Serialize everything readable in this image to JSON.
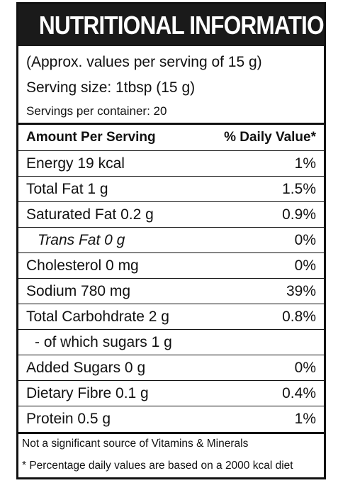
{
  "title": "NUTRITIONAL INFORMATION",
  "intro": {
    "approx": "(Approx. values per serving of 15 g)",
    "serving_size": "Serving size: 1tbsp (15 g)",
    "servings_per_container": "Servings per container: 20"
  },
  "header": {
    "amount": "Amount Per Serving",
    "daily_value": "% Daily Value*"
  },
  "rows": [
    {
      "label": "Energy 19 kcal",
      "value": "1%"
    },
    {
      "label": "Total Fat 1 g",
      "value": "1.5%"
    },
    {
      "label": "Saturated Fat 0.2 g",
      "value": "0.9%"
    },
    {
      "label": "Trans Fat 0 g",
      "value": "0%"
    },
    {
      "label": "Cholesterol 0 mg",
      "value": "0%"
    },
    {
      "label": "Sodium 780 mg",
      "value": "39%"
    },
    {
      "label": "Total Carbohdrate 2 g",
      "value": "0.8%"
    },
    {
      "label": "- of which sugars 1 g",
      "value": ""
    },
    {
      "label": "Added Sugars 0 g",
      "value": "0%"
    },
    {
      "label": "Dietary Fibre 0.1 g",
      "value": "0.4%"
    },
    {
      "label": "Protein 0.5 g",
      "value": "1%"
    }
  ],
  "footer": {
    "note1": "Not a significant source of Vitamins & Minerals",
    "note2": "* Percentage daily values are based on a 2000 kcal diet"
  }
}
